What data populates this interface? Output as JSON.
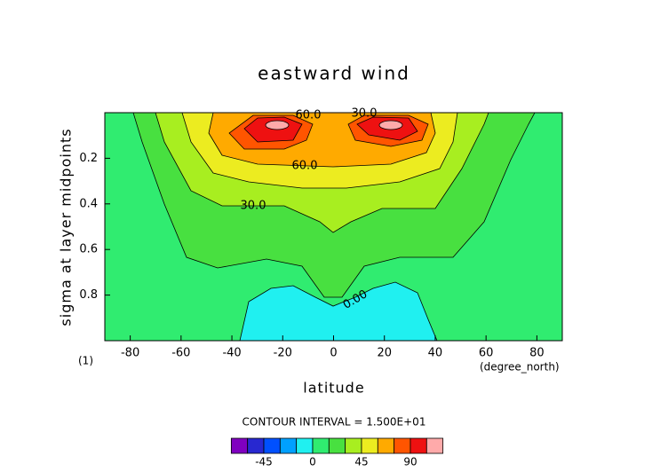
{
  "chart_data": {
    "type": "contour",
    "title": "eastward wind",
    "x_label": "latitude",
    "y_label": "sigma at layer midpoints",
    "x_unit": "(degree_north)",
    "y_unit": "(1)",
    "interval_note": "CONTOUR INTERVAL = 1.500E+01",
    "xlim": [
      -90,
      90
    ],
    "xticks": [
      -80,
      -60,
      -40,
      -20,
      0,
      20,
      40,
      60,
      80
    ],
    "ylim": [
      0,
      1
    ],
    "y_inverted": true,
    "yticks": [
      0.2,
      0.4,
      0.6,
      0.8
    ],
    "contour_labels": [
      {
        "value": 60,
        "label": "60.0"
      },
      {
        "value": 30,
        "label": "30.0"
      },
      {
        "value": 60,
        "label": "60.0"
      },
      {
        "value": 30,
        "label": "30.0"
      },
      {
        "value": 0,
        "label": "0.00"
      }
    ],
    "colorbar": {
      "levels": [
        -75,
        -60,
        -45,
        -30,
        -15,
        0,
        15,
        30,
        45,
        60,
        75,
        90,
        105,
        120
      ],
      "colors": [
        "#8000c0",
        "#2828d0",
        "#0050ff",
        "#00a0ff",
        "#20f0f0",
        "#30ec70",
        "#48e040",
        "#a8ee20",
        "#ecec20",
        "#ffaa00",
        "#ff5500",
        "#ee1111",
        "#ffaaaa"
      ],
      "ticks": [
        -45,
        0,
        45,
        90
      ]
    }
  }
}
